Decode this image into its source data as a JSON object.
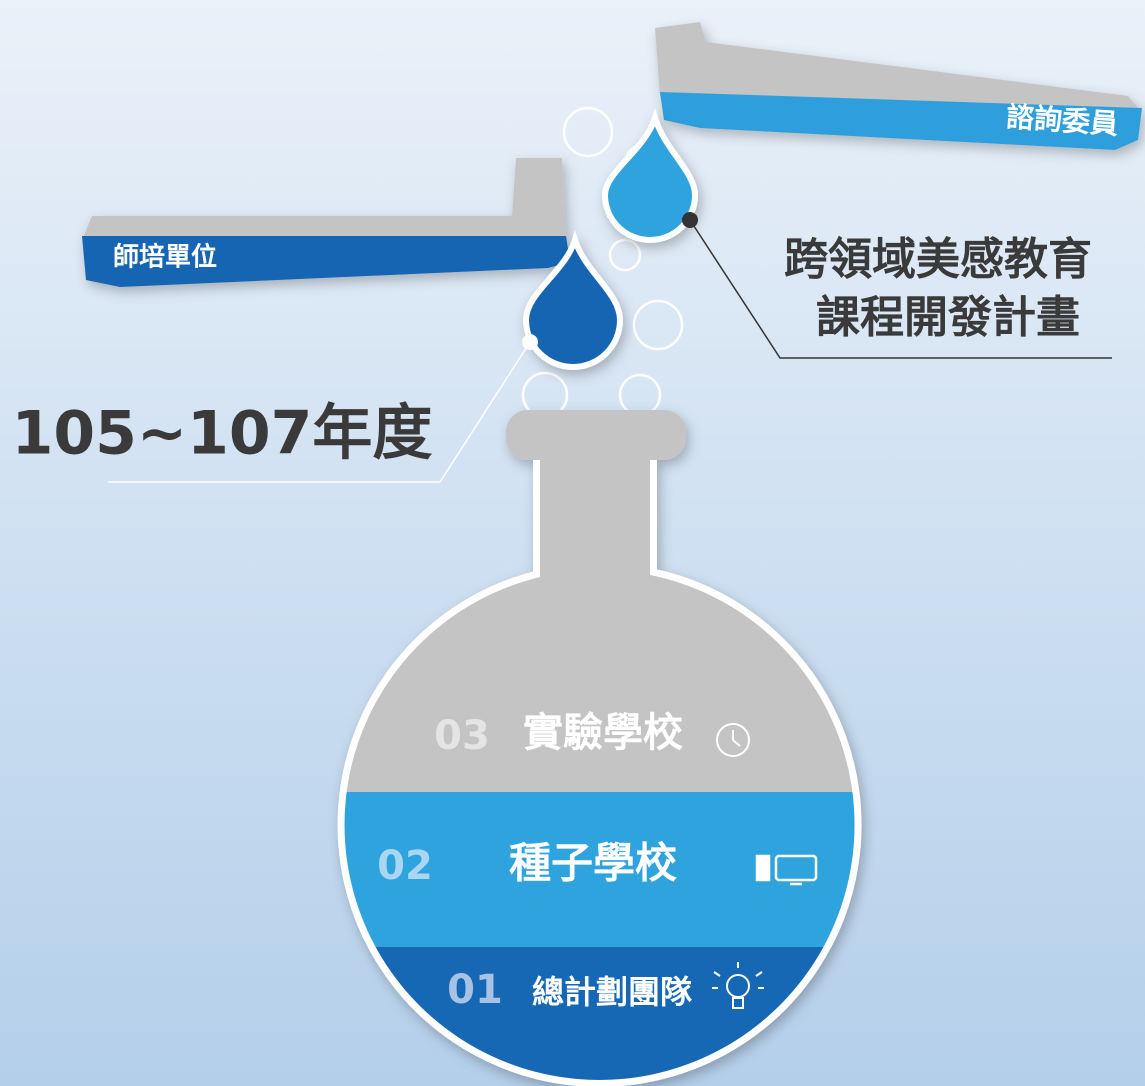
{
  "tubes": [
    {
      "label": "諮詢委員"
    },
    {
      "label": "師培單位"
    }
  ],
  "project": {
    "lines": [
      "跨領域美感教育",
      "課程開發計畫"
    ]
  },
  "period": "105~107年度",
  "levels": [
    {
      "number": "03",
      "label": "實驗學校"
    },
    {
      "number": "02",
      "label": "種子學校"
    },
    {
      "number": "01",
      "label": "總計劃團隊"
    }
  ]
}
